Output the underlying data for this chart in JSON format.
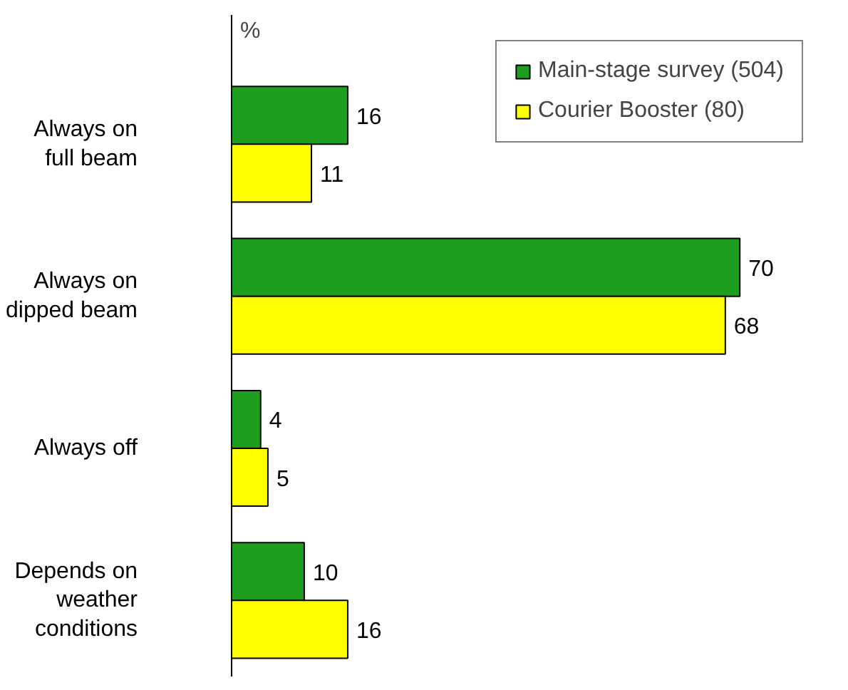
{
  "chart_data": {
    "type": "bar",
    "orientation": "horizontal",
    "categories": [
      "Always on\nfull beam",
      "Always on\ndipped beam",
      "Always off",
      "Depends on\nweather\nconditions"
    ],
    "series": [
      {
        "name": "Main-stage survey (504)",
        "color": "#1e9e1e",
        "values": [
          16,
          70,
          4,
          10
        ]
      },
      {
        "name": "Courier Booster (80)",
        "color": "#ffff00",
        "values": [
          11,
          68,
          5,
          16
        ]
      }
    ],
    "data_labels": true,
    "legend": "top right",
    "grid": false,
    "tick_labels": "y",
    "annotations": [
      "%"
    ]
  }
}
